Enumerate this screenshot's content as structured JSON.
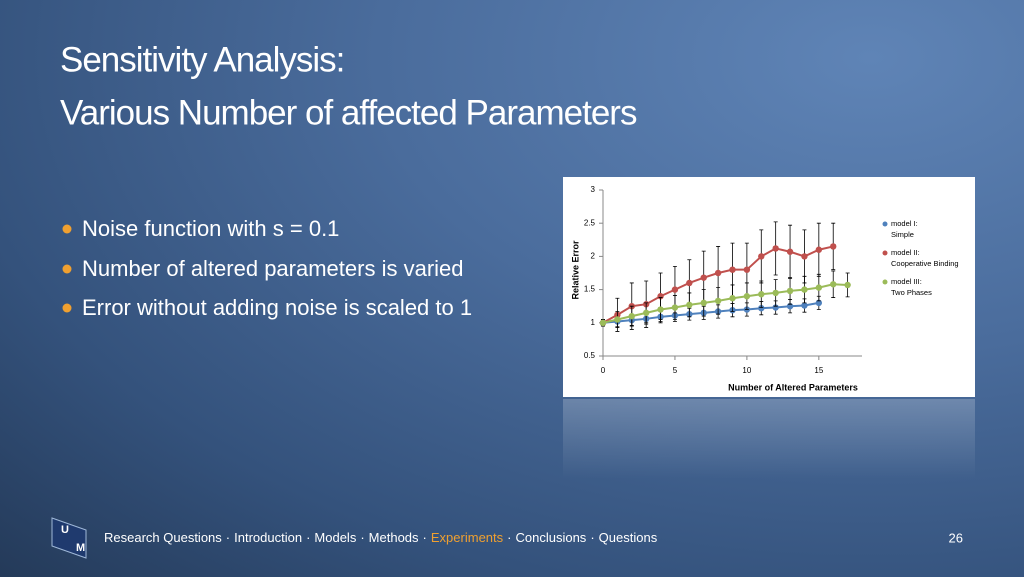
{
  "slide": {
    "title_lines": [
      "Sensitivity Analysis:",
      "Various Number of affected Parameters"
    ],
    "bullets": [
      "Noise  function with s = 0.1",
      "Number of altered parameters is varied",
      "Error without adding noise is scaled to 1"
    ],
    "nav": {
      "items": [
        "Research Questions",
        "Introduction",
        "Models",
        "Methods",
        "Experiments",
        "Conclusions",
        "Questions"
      ],
      "separator": "·",
      "active": 4
    },
    "page_number": "26",
    "logo": [
      "U",
      "M"
    ]
  },
  "chart_data": {
    "type": "line",
    "x_label": "Number of Altered Parameters",
    "y_label": "Relative Error",
    "xlim": [
      0,
      18
    ],
    "xticks": [
      0,
      5,
      10,
      15
    ],
    "ylim": [
      0.5,
      3
    ],
    "yticks": [
      0.5,
      1,
      1.5,
      2,
      2.5,
      3
    ],
    "series": [
      {
        "name": "model I: Simple",
        "color": "#4f81bd",
        "x": [
          0,
          1,
          2,
          3,
          4,
          5,
          6,
          7,
          8,
          9,
          10,
          11,
          12,
          13,
          14,
          15
        ],
        "values": [
          1.0,
          1.02,
          1.04,
          1.06,
          1.09,
          1.11,
          1.13,
          1.15,
          1.17,
          1.19,
          1.2,
          1.22,
          1.23,
          1.25,
          1.26,
          1.3
        ],
        "errors": [
          0.05,
          0.08,
          0.08,
          0.08,
          0.09,
          0.09,
          0.09,
          0.1,
          0.1,
          0.1,
          0.1,
          0.1,
          0.1,
          0.1,
          0.1,
          0.1
        ]
      },
      {
        "name": "model II: Cooperative Binding",
        "color": "#c0504d",
        "x": [
          0,
          1,
          2,
          3,
          4,
          5,
          6,
          7,
          8,
          9,
          10,
          11,
          12,
          13,
          14,
          15,
          16
        ],
        "values": [
          1.0,
          1.12,
          1.25,
          1.28,
          1.4,
          1.5,
          1.6,
          1.68,
          1.75,
          1.8,
          1.8,
          2.0,
          2.12,
          2.07,
          2.0,
          2.1,
          2.15
        ],
        "errors": [
          0.05,
          0.25,
          0.35,
          0.35,
          0.35,
          0.35,
          0.35,
          0.4,
          0.4,
          0.4,
          0.4,
          0.4,
          0.4,
          0.4,
          0.4,
          0.4,
          0.35
        ]
      },
      {
        "name": "model III: Two Phases",
        "color": "#9bbb59",
        "x": [
          0,
          1,
          2,
          3,
          4,
          5,
          6,
          7,
          8,
          9,
          10,
          11,
          12,
          13,
          14,
          15,
          16,
          17
        ],
        "values": [
          1.0,
          1.05,
          1.1,
          1.15,
          1.2,
          1.23,
          1.27,
          1.3,
          1.33,
          1.37,
          1.4,
          1.43,
          1.45,
          1.48,
          1.5,
          1.53,
          1.58,
          1.57
        ],
        "errors": [
          0.05,
          0.12,
          0.15,
          0.15,
          0.18,
          0.18,
          0.18,
          0.2,
          0.2,
          0.2,
          0.2,
          0.2,
          0.2,
          0.2,
          0.2,
          0.2,
          0.2,
          0.18
        ]
      }
    ]
  }
}
